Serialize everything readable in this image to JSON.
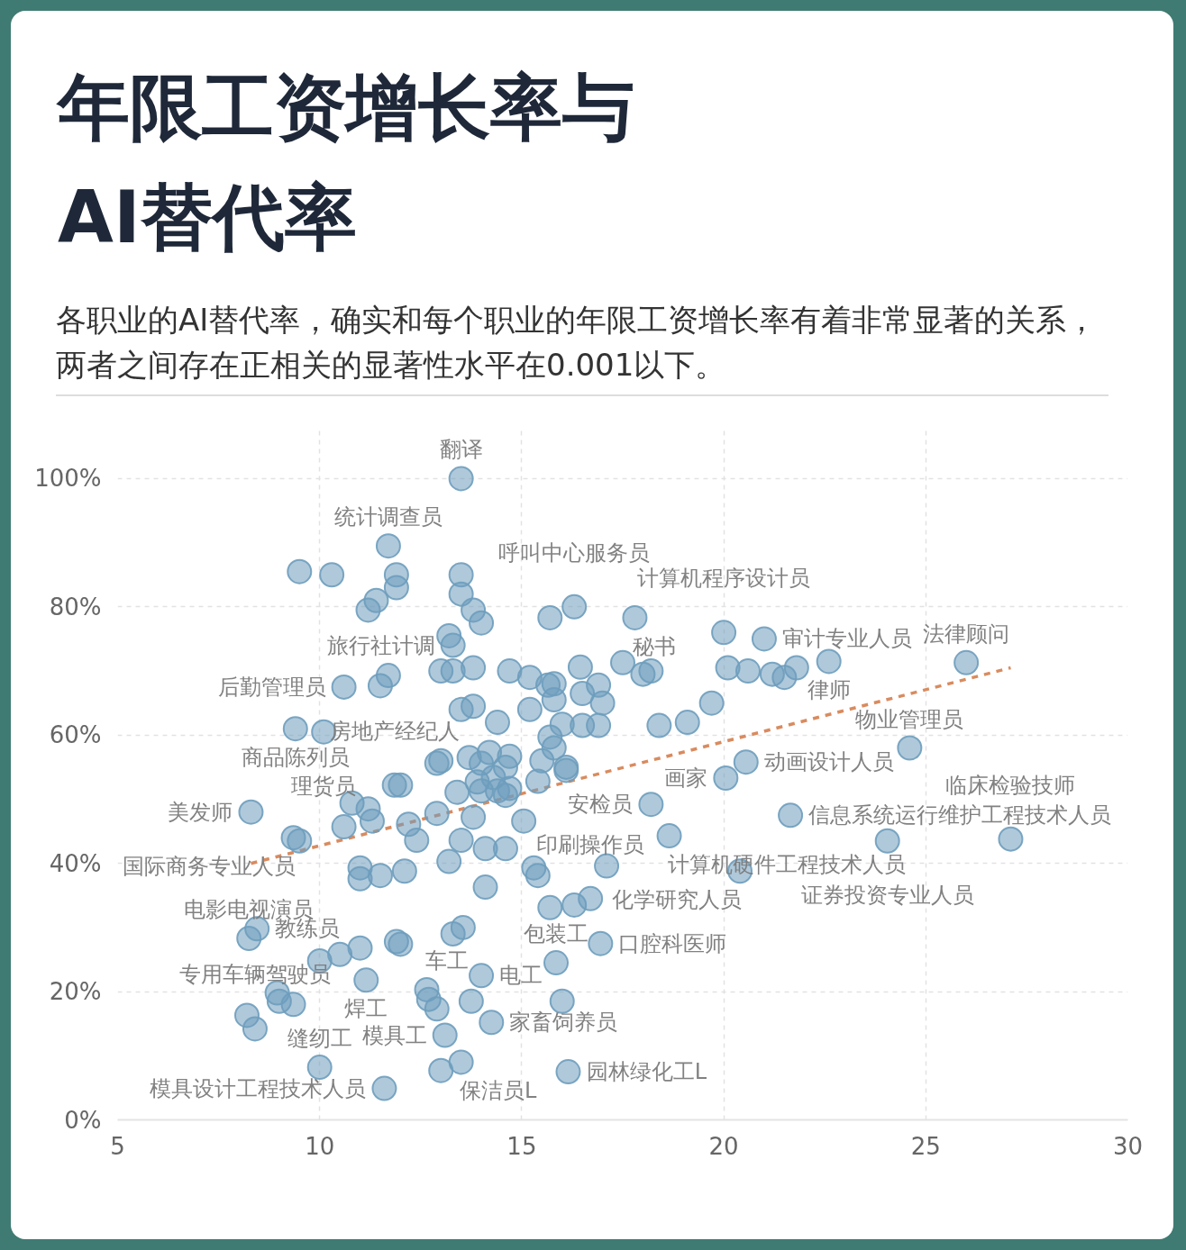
{
  "chart_data": {
    "type": "scatter",
    "title": "年限工资增长率与AI替代率",
    "subtitle": "各职业的AI替代率，确实和每个职业的年限工资增长率有着非常显著的关系，两者之间存在正相关的显著性水平在0.001以下。",
    "xlim": [
      5,
      30
    ],
    "ylim": [
      0,
      108
    ],
    "xticks": [
      5,
      10,
      15,
      20,
      25,
      30
    ],
    "yticks": [
      {
        "value": 0,
        "label": "0%"
      },
      {
        "value": 20,
        "label": "20%"
      },
      {
        "value": 40,
        "label": "40%"
      },
      {
        "value": 60,
        "label": "60%"
      },
      {
        "value": 80,
        "label": "80%"
      },
      {
        "value": 100,
        "label": "100%"
      }
    ],
    "grid": true,
    "series": [
      {
        "color": "#6e9dbd",
        "marker": "circle",
        "x": [
          13.5,
          11.7,
          9.5,
          10.3,
          11.9,
          11.9,
          13.5,
          11.4,
          11.2,
          13.5,
          13.8,
          14.0,
          15.7,
          16.3,
          17.8,
          13.2,
          13.3,
          20.0,
          21.0,
          22.6,
          26.0,
          21.8,
          21.5,
          21.2,
          20.6,
          20.1,
          17.5,
          18.2,
          13.0,
          13.3,
          13.8,
          14.7,
          11.7,
          11.5,
          10.6,
          15.8,
          13.5,
          13.8,
          15.2,
          15.8,
          16.5,
          17.0,
          19.7,
          16.5,
          16.9,
          18.4,
          19.1,
          14.4,
          15.7,
          15.8,
          16.1,
          14.6,
          13.0,
          13.7,
          14.2,
          13.9,
          14.4,
          14.7,
          11.85,
          10.8,
          11.2,
          18.2,
          9.4,
          10.1,
          20.55,
          20.05,
          24.6,
          16.1,
          15.5,
          14.6,
          21.65,
          18.65,
          20.4,
          24.05,
          27.1,
          8.3,
          9.35,
          9.5,
          10.6,
          11.0,
          11.0,
          11.5,
          12.1,
          12.4,
          13.2,
          13.5,
          14.1,
          14.6,
          15.3,
          15.4,
          17.1,
          14.1,
          15.7,
          16.3,
          16.7,
          16.95,
          15.85,
          16.0,
          16.15,
          14.25,
          13.5,
          13.0,
          11.6,
          10.0,
          8.2,
          8.4,
          8.95,
          9.0,
          9.35,
          8.25,
          8.45,
          10.0,
          10.5,
          11.0,
          11.15,
          11.9,
          12.0,
          13.55,
          13.3,
          12.65,
          12.7,
          12.9,
          13.75,
          14.0,
          13.1,
          15.2,
          15.65,
          16.45,
          16.9,
          16.0,
          14.7,
          14.3,
          15.4,
          13.4,
          12.9,
          14.0,
          12.9,
          13.8,
          12.2,
          11.3,
          15.05,
          18.0,
          14.0,
          12.0
        ],
        "values": [
          100,
          89.5,
          85.5,
          85,
          85,
          83,
          85,
          81,
          79.5,
          82,
          79.5,
          77.5,
          78.3,
          80,
          78.3,
          75.5,
          74,
          76,
          75,
          71.5,
          71.3,
          70.5,
          69,
          69.5,
          70,
          70.5,
          71.3,
          70,
          70,
          70,
          70.5,
          70,
          69.3,
          67.7,
          67.5,
          68,
          64,
          64.5,
          64,
          65.5,
          66.5,
          65,
          65,
          61.5,
          61.5,
          61.5,
          62,
          62,
          59.7,
          58,
          55,
          55,
          56,
          56.5,
          57.3,
          52.7,
          51.3,
          51.7,
          52.2,
          49.4,
          48.5,
          49.2,
          61,
          60.5,
          55.8,
          53.3,
          58,
          54.5,
          56,
          50.6,
          47.5,
          44.3,
          38.8,
          43.5,
          43.8,
          48,
          44,
          43.5,
          45.7,
          39.3,
          37.6,
          38.1,
          38.8,
          43.6,
          40.3,
          43.6,
          42.3,
          42.3,
          39.3,
          38.1,
          39.6,
          36.3,
          33.1,
          33.5,
          34.5,
          27.5,
          24.5,
          18.5,
          7.5,
          15.2,
          9,
          7.7,
          4.9,
          8.2,
          16.3,
          14.2,
          19.8,
          18.5,
          18,
          28.3,
          29.8,
          24.8,
          25.8,
          26.8,
          21.8,
          27.8,
          27.4,
          30,
          29,
          20.3,
          18.8,
          17.3,
          18.5,
          22.5,
          13.2,
          69,
          67.8,
          70.6,
          67.8,
          61.7,
          56.7,
          53.4,
          52.8,
          51.1,
          55.6,
          55.6,
          47.8,
          47.2,
          46.1,
          46.6,
          46.6,
          69.5,
          51.3,
          52.2
        ]
      },
      {
        "type": "line",
        "color": "#d98b5f",
        "line_style": "dashed",
        "x": [
          8.3,
          27.1
        ],
        "values": [
          40,
          70.5
        ]
      }
    ],
    "annotations": [
      {
        "text": "翻译",
        "x": 13.5,
        "y": 100
      },
      {
        "text": "统计调查员",
        "x": 11.7,
        "y": 89.5
      },
      {
        "text": "计算机程序设计员",
        "x": 20.0,
        "y": 76
      },
      {
        "text": "审计专业人员",
        "x": 21.0,
        "y": 75
      },
      {
        "text": "律师",
        "x": 22.6,
        "y": 71.5
      },
      {
        "text": "法律顾问",
        "x": 26.0,
        "y": 71.3
      },
      {
        "text": "呼叫中心服务员",
        "x": 16.3,
        "y": 80
      },
      {
        "text": "秘书",
        "x": 17.8,
        "y": 78.3
      },
      {
        "text": "旅行社计调",
        "x": 13.3,
        "y": 74
      },
      {
        "text": "后勤管理员",
        "x": 10.6,
        "y": 67.5
      },
      {
        "text": "商品陈列员",
        "x": 9.4,
        "y": 61
      },
      {
        "text": "理货员",
        "x": 10.1,
        "y": 60.5
      },
      {
        "text": "房地产经纪人",
        "x": 11.85,
        "y": 52.2
      },
      {
        "text": "美发师",
        "x": 8.3,
        "y": 48
      },
      {
        "text": "国际商务专业人员",
        "x": 9.35,
        "y": 44
      },
      {
        "text": "动画设计人员",
        "x": 20.55,
        "y": 55.8
      },
      {
        "text": "画家",
        "x": 20.05,
        "y": 53.3
      },
      {
        "text": "物业管理员",
        "x": 24.6,
        "y": 58
      },
      {
        "text": "安检员",
        "x": 18.2,
        "y": 49.2
      },
      {
        "text": "信息系统运行维护工程技术人员",
        "x": 21.65,
        "y": 47.5
      },
      {
        "text": "计算机硬件工程技术人员",
        "x": 18.65,
        "y": 44.3
      },
      {
        "text": "证券投资专业人员",
        "x": 24.05,
        "y": 43.5
      },
      {
        "text": "临床检验技师",
        "x": 27.1,
        "y": 43.8
      },
      {
        "text": "化学研究人员",
        "x": 20.4,
        "y": 38.8
      },
      {
        "text": "印刷操作员",
        "x": 16.7,
        "y": 34.5
      },
      {
        "text": "口腔科医师",
        "x": 16.95,
        "y": 27.5
      },
      {
        "text": "包装工",
        "x": 15.85,
        "y": 24.5
      },
      {
        "text": "电工",
        "x": 14.0,
        "y": 22.5
      },
      {
        "text": "车工",
        "x": 12.65,
        "y": 20.3
      },
      {
        "text": "焊工",
        "x": 11.15,
        "y": 21.8
      },
      {
        "text": "家畜饲养员",
        "x": 14.25,
        "y": 15.2
      },
      {
        "text": "模具工",
        "x": 13.1,
        "y": 13.2
      },
      {
        "text": "保洁员L",
        "x": 13.5,
        "y": 9
      },
      {
        "text": "园林绿化工L",
        "x": 16.15,
        "y": 7.5
      },
      {
        "text": "模具设计工程技术人员",
        "x": 11.6,
        "y": 4.9
      },
      {
        "text": "缝纫工",
        "x": 10.0,
        "y": 8.2
      },
      {
        "text": "专用车辆驾驶员",
        "x": 8.4,
        "y": 14.2
      },
      {
        "text": "电影电视演员",
        "x": 8.25,
        "y": 28.3
      },
      {
        "text": "教练员",
        "x": 8.45,
        "y": 29.8
      }
    ]
  }
}
